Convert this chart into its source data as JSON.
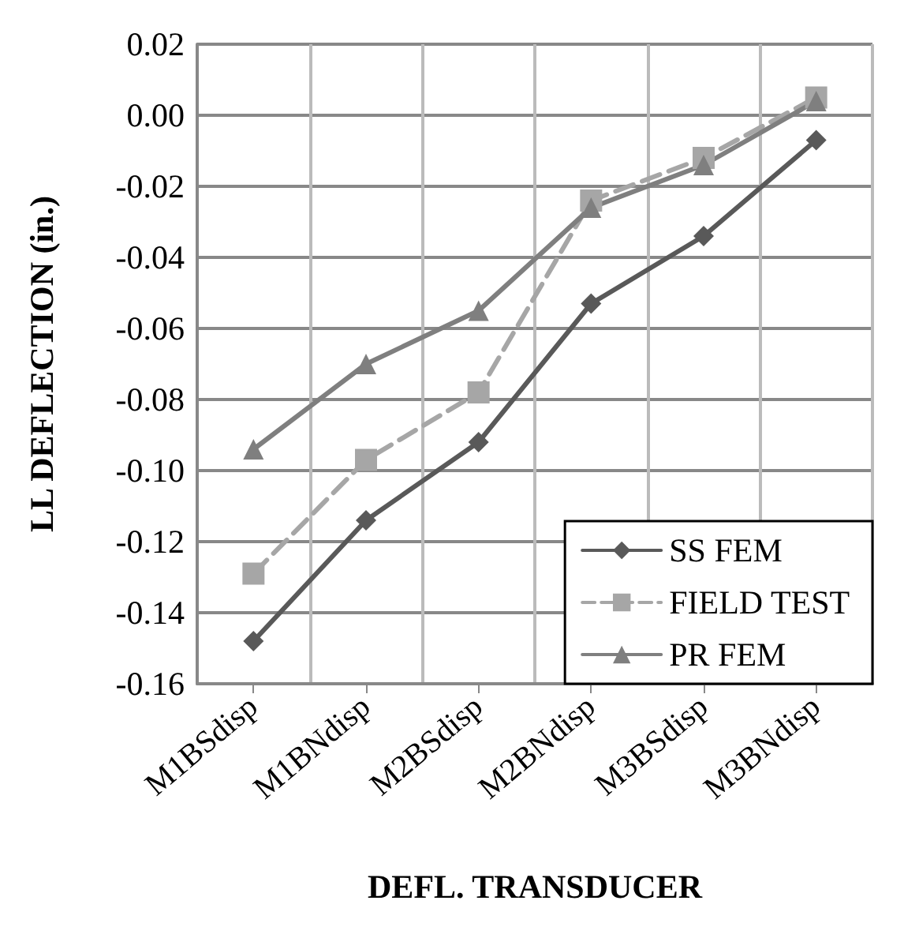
{
  "chart_data": {
    "type": "line",
    "xlabel": "DEFL. TRANSDUCER",
    "ylabel": "LL DEFLECTION (in.)",
    "categories": [
      "M1BSdisp",
      "M1BNdisp",
      "M2BSdisp",
      "M2BNdisp",
      "M3BSdisp",
      "M3BNdisp"
    ],
    "series": [
      {
        "name": "SS FEM",
        "color": "#595959",
        "marker": "diamond",
        "line_style": "solid",
        "values": [
          -0.148,
          -0.114,
          -0.092,
          -0.053,
          -0.034,
          -0.007
        ]
      },
      {
        "name": "FIELD TEST",
        "color": "#a6a6a6",
        "marker": "square",
        "line_style": "dashed",
        "values": [
          -0.129,
          -0.097,
          -0.078,
          -0.024,
          -0.012,
          0.005
        ]
      },
      {
        "name": "PR FEM",
        "color": "#7f7f7f",
        "marker": "triangle",
        "line_style": "solid",
        "values": [
          -0.094,
          -0.07,
          -0.055,
          -0.026,
          -0.014,
          0.004
        ]
      }
    ],
    "ylim": [
      -0.16,
      0.02
    ],
    "yticks": [
      -0.16,
      -0.14,
      -0.12,
      {
        "value": -0.1,
        "label": "-0.10"
      },
      -0.08,
      -0.06,
      -0.04,
      -0.02,
      {
        "value": 0,
        "label": "0.00"
      },
      0.02
    ],
    "grid": true,
    "legend": "bottom right"
  }
}
